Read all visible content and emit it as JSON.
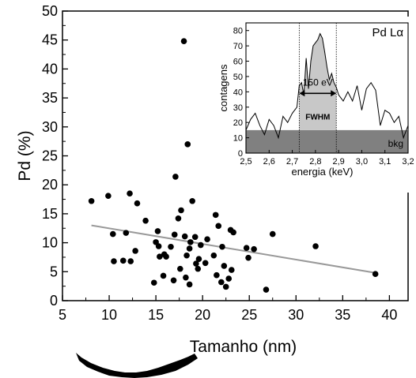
{
  "chart_data": [
    {
      "type": "scatter",
      "xlabel": "Tamanho (nm)",
      "ylabel": "Pd (%)",
      "xlim": [
        5,
        42
      ],
      "ylim": [
        0,
        50
      ],
      "xticks": [
        5,
        10,
        15,
        20,
        25,
        30,
        35,
        40
      ],
      "yticks": [
        0,
        5,
        10,
        15,
        20,
        25,
        30,
        35,
        40,
        45,
        50
      ],
      "grid": false,
      "points": [
        [
          8.1,
          17.2
        ],
        [
          9.9,
          18.1
        ],
        [
          10.4,
          11.5
        ],
        [
          10.5,
          6.8
        ],
        [
          11.5,
          6.9
        ],
        [
          11.8,
          11.7
        ],
        [
          12.2,
          18.5
        ],
        [
          12.3,
          6.8
        ],
        [
          12.8,
          8.6
        ],
        [
          13.0,
          16.8
        ],
        [
          13.9,
          13.8
        ],
        [
          14.8,
          3.1
        ],
        [
          15.0,
          10.1
        ],
        [
          15.2,
          12.0
        ],
        [
          15.3,
          9.4
        ],
        [
          15.4,
          7.6
        ],
        [
          15.8,
          4.3
        ],
        [
          15.9,
          8.0
        ],
        [
          16.1,
          7.6
        ],
        [
          16.6,
          9.3
        ],
        [
          16.9,
          3.5
        ],
        [
          17.0,
          11.4
        ],
        [
          17.1,
          21.4
        ],
        [
          17.4,
          14.2
        ],
        [
          17.6,
          5.5
        ],
        [
          17.7,
          15.6
        ],
        [
          18.0,
          44.8
        ],
        [
          18.1,
          11.1
        ],
        [
          18.2,
          4.0
        ],
        [
          18.3,
          7.8
        ],
        [
          18.4,
          27.0
        ],
        [
          18.6,
          9.0
        ],
        [
          18.6,
          2.8
        ],
        [
          18.7,
          10.1
        ],
        [
          18.9,
          17.2
        ],
        [
          19.2,
          11.0
        ],
        [
          19.3,
          6.4
        ],
        [
          19.5,
          5.5
        ],
        [
          19.6,
          7.2
        ],
        [
          19.8,
          9.6
        ],
        [
          20.3,
          6.5
        ],
        [
          20.5,
          10.6
        ],
        [
          21.2,
          7.8
        ],
        [
          21.4,
          14.8
        ],
        [
          21.5,
          4.4
        ],
        [
          21.7,
          12.9
        ],
        [
          22.0,
          3.2
        ],
        [
          22.1,
          9.3
        ],
        [
          22.3,
          6.0
        ],
        [
          22.5,
          2.4
        ],
        [
          22.8,
          3.8
        ],
        [
          23.0,
          12.2
        ],
        [
          23.1,
          5.3
        ],
        [
          23.3,
          11.8
        ],
        [
          24.7,
          9.1
        ],
        [
          24.9,
          7.4
        ],
        [
          25.5,
          8.9
        ],
        [
          26.8,
          1.9
        ],
        [
          27.5,
          11.5
        ],
        [
          32.1,
          9.4
        ],
        [
          38.5,
          4.6
        ]
      ],
      "fit_line": {
        "x": [
          8.1,
          38.5
        ],
        "y": [
          13.0,
          4.8
        ],
        "color": "#999999"
      }
    },
    {
      "type": "area",
      "title": "Pd Lα",
      "xlabel": "energia (keV)",
      "ylabel": "contagens",
      "xlim": [
        2.5,
        3.2
      ],
      "ylim": [
        0,
        85
      ],
      "xticks": [
        "2,5",
        "2,6",
        "2,7",
        "2,8",
        "2,9",
        "3,0",
        "3,1",
        "3,2"
      ],
      "yticks": [
        0,
        10,
        20,
        30,
        40,
        50,
        60,
        70,
        80
      ],
      "background_label": "bkg",
      "background_level": 15,
      "peak_width_label": "150 eV",
      "peak_width_sublabel": "FWHM",
      "peak_bounds": [
        2.73,
        2.89
      ],
      "peak_color": "#c8c8c8",
      "background_color": "#808080",
      "spectrum": [
        [
          2.5,
          15
        ],
        [
          2.52,
          22
        ],
        [
          2.54,
          26
        ],
        [
          2.56,
          18
        ],
        [
          2.58,
          12
        ],
        [
          2.6,
          22
        ],
        [
          2.62,
          18
        ],
        [
          2.64,
          10
        ],
        [
          2.66,
          24
        ],
        [
          2.68,
          20
        ],
        [
          2.7,
          26
        ],
        [
          2.72,
          30
        ],
        [
          2.73,
          44
        ],
        [
          2.74,
          46
        ],
        [
          2.75,
          38
        ],
        [
          2.76,
          62
        ],
        [
          2.77,
          42
        ],
        [
          2.78,
          60
        ],
        [
          2.79,
          70
        ],
        [
          2.8,
          72
        ],
        [
          2.81,
          74
        ],
        [
          2.82,
          78
        ],
        [
          2.83,
          75
        ],
        [
          2.84,
          66
        ],
        [
          2.85,
          56
        ],
        [
          2.86,
          48
        ],
        [
          2.87,
          52
        ],
        [
          2.88,
          46
        ],
        [
          2.89,
          43
        ],
        [
          2.9,
          38
        ],
        [
          2.92,
          34
        ],
        [
          2.94,
          40
        ],
        [
          2.96,
          34
        ],
        [
          2.98,
          44
        ],
        [
          3.0,
          28
        ],
        [
          3.02,
          42
        ],
        [
          3.04,
          46
        ],
        [
          3.06,
          41
        ],
        [
          3.08,
          18
        ],
        [
          3.1,
          28
        ],
        [
          3.12,
          26
        ],
        [
          3.14,
          20
        ],
        [
          3.16,
          24
        ],
        [
          3.18,
          10
        ],
        [
          3.2,
          18
        ]
      ]
    }
  ]
}
